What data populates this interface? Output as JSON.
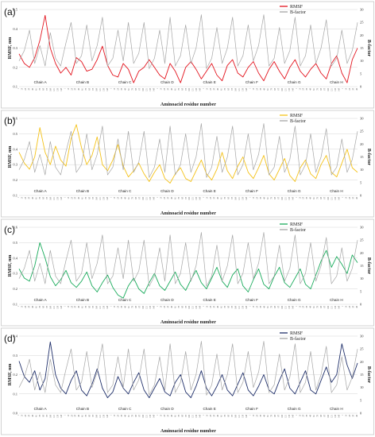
{
  "chart_data": [
    {
      "type": "line",
      "panel_label": "(a)",
      "ylabel": "RMSF, nm",
      "y2label": "B-factor",
      "xlabel": "Aminoacid residue number",
      "ylim": [
        0.1,
        0.5
      ],
      "yticks": [
        0.1,
        0.2,
        0.3,
        0.4,
        0.5
      ],
      "y2lim": [
        0,
        30
      ],
      "y2ticks": [
        0,
        5,
        10,
        15,
        20,
        25,
        30
      ],
      "legend_position": "top-right",
      "chains": [
        "Chain A",
        "Chain B",
        "Chain C",
        "Chain D",
        "Chain E",
        "Chain F",
        "Chain G",
        "Chain H"
      ],
      "series": [
        {
          "name": "RMSF",
          "color": "#e3141e",
          "axis": "left",
          "values": [
            0.27,
            0.22,
            0.2,
            0.25,
            0.34,
            0.47,
            0.3,
            0.22,
            0.17,
            0.2,
            0.16,
            0.25,
            0.23,
            0.18,
            0.19,
            0.24,
            0.31,
            0.21,
            0.16,
            0.15,
            0.22,
            0.19,
            0.12,
            0.18,
            0.2,
            0.24,
            0.2,
            0.16,
            0.14,
            0.22,
            0.18,
            0.12,
            0.2,
            0.23,
            0.19,
            0.14,
            0.18,
            0.22,
            0.16,
            0.13,
            0.21,
            0.24,
            0.17,
            0.15,
            0.2,
            0.23,
            0.17,
            0.13,
            0.19,
            0.23,
            0.18,
            0.14,
            0.2,
            0.24,
            0.18,
            0.15,
            0.19,
            0.22,
            0.17,
            0.14,
            0.22,
            0.26,
            0.17,
            0.12,
            0.24,
            0.3
          ]
        },
        {
          "name": "B-factor",
          "color": "#a6a6a6",
          "axis": "right",
          "values": [
            10,
            14,
            22,
            9,
            16,
            8,
            21,
            11,
            8,
            17,
            25,
            9,
            12,
            24,
            10,
            16,
            27,
            8,
            11,
            22,
            10,
            25,
            9,
            13,
            25,
            7,
            11,
            22,
            9,
            27,
            8,
            12,
            24,
            9,
            15,
            28,
            7,
            11,
            23,
            9,
            15,
            27,
            8,
            12,
            24,
            10,
            16,
            28,
            8,
            11,
            23,
            9,
            14,
            27,
            8,
            12,
            24,
            9,
            15,
            26,
            8,
            11,
            22,
            9,
            14,
            25
          ]
        }
      ]
    },
    {
      "type": "line",
      "panel_label": "(b)",
      "ylabel": "RMSF, nm",
      "y2label": "B-factor",
      "xlabel": "Aminoacid residue number",
      "ylim": [
        0.1,
        0.6
      ],
      "yticks": [
        0.1,
        0.2,
        0.3,
        0.4,
        0.5,
        0.6
      ],
      "y2lim": [
        0,
        30
      ],
      "y2ticks": [
        0,
        5,
        10,
        15,
        20,
        25,
        30
      ],
      "legend_position": "top-right",
      "chains": [
        "Chain A",
        "Chain B",
        "Chain C",
        "Chain D",
        "Chain E",
        "Chain F",
        "Chain G",
        "Chain H"
      ],
      "series": [
        {
          "name": "RMSF",
          "color": "#f4c21a",
          "axis": "left",
          "values": [
            0.38,
            0.31,
            0.27,
            0.35,
            0.54,
            0.38,
            0.3,
            0.42,
            0.33,
            0.29,
            0.47,
            0.56,
            0.41,
            0.3,
            0.36,
            0.48,
            0.3,
            0.26,
            0.33,
            0.43,
            0.29,
            0.22,
            0.26,
            0.31,
            0.24,
            0.19,
            0.25,
            0.3,
            0.21,
            0.18,
            0.24,
            0.28,
            0.21,
            0.19,
            0.26,
            0.33,
            0.24,
            0.2,
            0.27,
            0.38,
            0.26,
            0.21,
            0.29,
            0.35,
            0.25,
            0.21,
            0.28,
            0.36,
            0.24,
            0.2,
            0.27,
            0.34,
            0.23,
            0.19,
            0.28,
            0.33,
            0.24,
            0.21,
            0.3,
            0.36,
            0.25,
            0.22,
            0.31,
            0.4,
            0.28,
            0.25
          ]
        },
        {
          "name": "B-factor",
          "color": "#a6a6a6",
          "axis": "right",
          "values": [
            10,
            14,
            21,
            9,
            16,
            8,
            21,
            11,
            8,
            17,
            25,
            9,
            12,
            24,
            10,
            16,
            27,
            8,
            11,
            22,
            10,
            25,
            9,
            13,
            25,
            7,
            11,
            22,
            9,
            27,
            8,
            12,
            24,
            9,
            15,
            28,
            7,
            11,
            23,
            9,
            15,
            27,
            8,
            12,
            24,
            10,
            16,
            28,
            8,
            11,
            23,
            9,
            14,
            27,
            8,
            12,
            24,
            9,
            15,
            26,
            8,
            11,
            22,
            9,
            14,
            25
          ]
        }
      ]
    },
    {
      "type": "line",
      "panel_label": "(c)",
      "ylabel": "RMSF, nm",
      "y2label": "B-factor",
      "xlabel": "Aminoacid residue number",
      "ylim": [
        0.1,
        0.6
      ],
      "yticks": [
        0.1,
        0.2,
        0.3,
        0.4,
        0.5,
        0.6
      ],
      "y2lim": [
        0,
        30
      ],
      "y2ticks": [
        0,
        5,
        10,
        15,
        20,
        25,
        30
      ],
      "legend_position": "top-right",
      "chains": [
        "Chain A",
        "Chain B",
        "Chain C",
        "Chain D",
        "Chain E",
        "Chain F",
        "Chain G",
        "Chain H"
      ],
      "series": [
        {
          "name": "RMSF",
          "color": "#1aab5c",
          "axis": "left",
          "values": [
            0.33,
            0.27,
            0.25,
            0.35,
            0.5,
            0.4,
            0.28,
            0.22,
            0.26,
            0.32,
            0.24,
            0.21,
            0.25,
            0.31,
            0.22,
            0.18,
            0.24,
            0.29,
            0.21,
            0.16,
            0.14,
            0.22,
            0.27,
            0.2,
            0.17,
            0.24,
            0.3,
            0.22,
            0.19,
            0.25,
            0.31,
            0.23,
            0.19,
            0.26,
            0.32,
            0.24,
            0.2,
            0.27,
            0.34,
            0.25,
            0.21,
            0.29,
            0.33,
            0.22,
            0.18,
            0.26,
            0.33,
            0.23,
            0.2,
            0.28,
            0.34,
            0.24,
            0.21,
            0.27,
            0.33,
            0.23,
            0.2,
            0.29,
            0.38,
            0.45,
            0.34,
            0.41,
            0.36,
            0.3,
            0.42,
            0.37
          ]
        },
        {
          "name": "B-factor",
          "color": "#a6a6a6",
          "axis": "right",
          "values": [
            10,
            14,
            21,
            9,
            16,
            8,
            21,
            11,
            8,
            17,
            25,
            9,
            12,
            24,
            10,
            16,
            27,
            8,
            11,
            22,
            10,
            25,
            9,
            13,
            25,
            7,
            11,
            22,
            9,
            27,
            8,
            12,
            24,
            9,
            15,
            28,
            7,
            11,
            23,
            9,
            15,
            27,
            8,
            12,
            24,
            10,
            16,
            28,
            8,
            11,
            23,
            9,
            14,
            27,
            8,
            12,
            24,
            9,
            15,
            26,
            8,
            11,
            22,
            9,
            14,
            25
          ]
        }
      ]
    },
    {
      "type": "line",
      "panel_label": "(d)",
      "ylabel": "RMSF, nm",
      "y2label": "B-factor",
      "xlabel": "Aminoacid residue number",
      "ylim": [
        0,
        0.4
      ],
      "yticks": [
        0,
        0.1,
        0.2,
        0.3,
        0.4
      ],
      "y2lim": [
        0,
        30
      ],
      "y2ticks": [
        0,
        5,
        10,
        15,
        20,
        25,
        30
      ],
      "legend_position": "top-right",
      "chains": [
        "Chain A",
        "Chain B",
        "Chain C",
        "Chain D",
        "Chain E",
        "Chain F",
        "Chain G",
        "Chain H"
      ],
      "series": [
        {
          "name": "RMSF",
          "color": "#1f2f6a",
          "axis": "left",
          "values": [
            0.27,
            0.19,
            0.16,
            0.22,
            0.12,
            0.18,
            0.37,
            0.2,
            0.13,
            0.1,
            0.17,
            0.22,
            0.12,
            0.09,
            0.15,
            0.23,
            0.13,
            0.08,
            0.11,
            0.19,
            0.13,
            0.1,
            0.16,
            0.21,
            0.12,
            0.08,
            0.13,
            0.18,
            0.11,
            0.09,
            0.16,
            0.2,
            0.11,
            0.08,
            0.14,
            0.22,
            0.13,
            0.09,
            0.14,
            0.2,
            0.12,
            0.09,
            0.15,
            0.21,
            0.12,
            0.09,
            0.14,
            0.2,
            0.12,
            0.1,
            0.17,
            0.23,
            0.13,
            0.1,
            0.16,
            0.22,
            0.12,
            0.1,
            0.17,
            0.24,
            0.16,
            0.2,
            0.36,
            0.25,
            0.18,
            0.26
          ]
        },
        {
          "name": "B-factor",
          "color": "#a6a6a6",
          "axis": "right",
          "values": [
            10,
            14,
            21,
            9,
            16,
            8,
            21,
            11,
            8,
            17,
            25,
            9,
            12,
            24,
            10,
            16,
            27,
            8,
            11,
            22,
            10,
            25,
            9,
            13,
            25,
            7,
            11,
            22,
            9,
            27,
            8,
            12,
            24,
            9,
            15,
            28,
            7,
            11,
            23,
            9,
            15,
            27,
            8,
            12,
            24,
            10,
            16,
            28,
            8,
            11,
            23,
            9,
            14,
            27,
            8,
            12,
            24,
            9,
            15,
            26,
            8,
            11,
            22,
            9,
            14,
            25
          ]
        }
      ]
    }
  ]
}
